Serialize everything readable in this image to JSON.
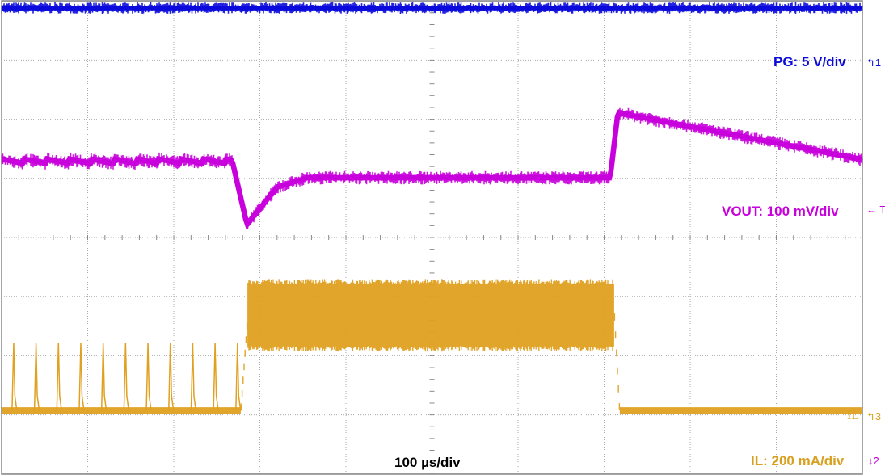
{
  "chart_data": {
    "type": "line",
    "title": "",
    "xlabel": "100 µs/div",
    "x_unit": "µs",
    "xlim": [
      0,
      1000
    ],
    "ylim_div": [
      -4,
      4
    ],
    "grid": true,
    "colors": {
      "PG": "#0a0adc",
      "VOUT": "#c800dc",
      "IL": "#e0a020"
    },
    "series": [
      {
        "name": "PG",
        "scale": "PG: 5 V/div",
        "marker": "1",
        "points_div": [
          [
            0,
            3.88
          ],
          [
            1000,
            3.88
          ]
        ]
      },
      {
        "name": "VOUT",
        "scale": "VOUT: 100 mV/div",
        "marker": "1",
        "ripple_period_before_step_us": 26,
        "points_div": [
          [
            0,
            1.29
          ],
          [
            268,
            1.29
          ],
          [
            285,
            0.22
          ],
          [
            320,
            0.85
          ],
          [
            355,
            1.01
          ],
          [
            707,
            1.01
          ],
          [
            716,
            2.11
          ],
          [
            1000,
            1.32
          ]
        ]
      },
      {
        "name": "IL",
        "scale": "IL: 200 mA/div",
        "marker": "3",
        "trace_label": "IL",
        "spike_period_before_step_us": 26,
        "baseline_div": -2.93,
        "spike_peak_div": -1.79,
        "band_div": [
          -1.93,
          -0.7
        ],
        "band_us": [
          278,
          712
        ]
      }
    ]
  },
  "markers": {
    "ch1": "1",
    "ch2": "2",
    "ch3": "3"
  }
}
